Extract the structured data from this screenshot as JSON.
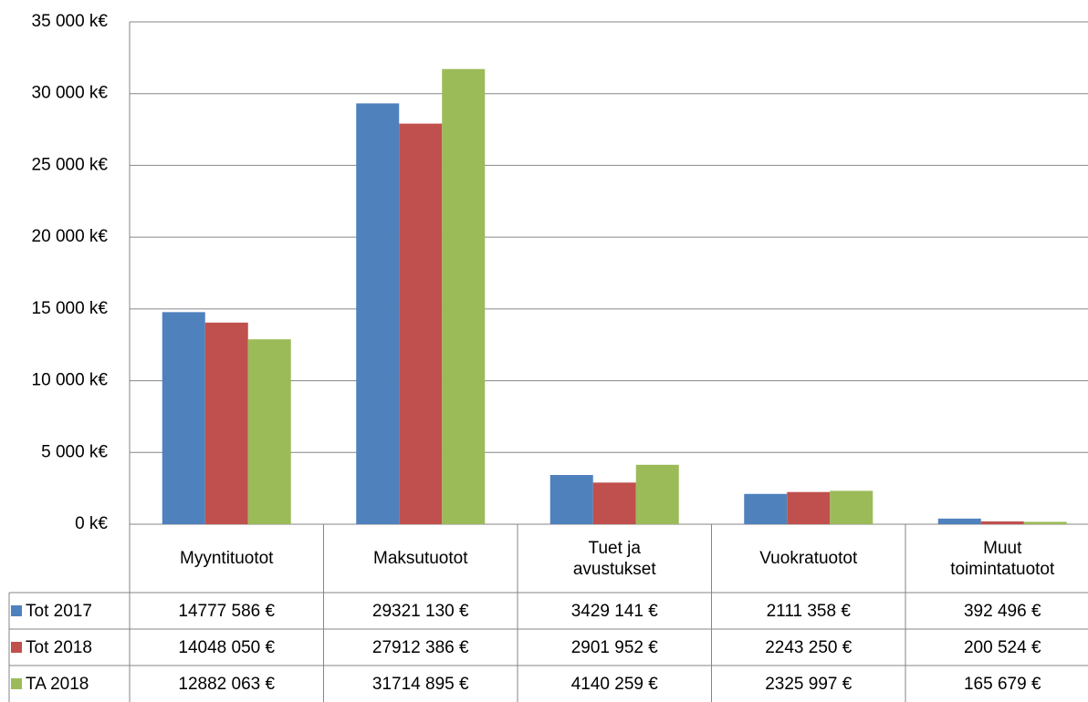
{
  "chart_data": {
    "type": "bar",
    "categories": [
      "Myyntituotot",
      "Maksutuotot",
      "Tuet ja avustukset",
      "Vuokratuotot",
      "Muut toimintatuotot"
    ],
    "series": [
      {
        "name": "Tot 2017",
        "color": "#4f81bd",
        "values": [
          14777.586,
          29321.13,
          3429.141,
          2111.358,
          392.496
        ],
        "value_labels": [
          "14777 586 €",
          "29321 130 €",
          "3429 141 €",
          "2111 358 €",
          "392 496 €"
        ]
      },
      {
        "name": "Tot 2018",
        "color": "#c0504d",
        "values": [
          14048.05,
          27912.386,
          2901.952,
          2243.25,
          200.524
        ],
        "value_labels": [
          "14048 050 €",
          "27912 386 €",
          "2901 952 €",
          "2243 250 €",
          "200 524 €"
        ]
      },
      {
        "name": "TA 2018",
        "color": "#9bbb59",
        "values": [
          12882.063,
          31714.895,
          4140.259,
          2325.997,
          165.679
        ],
        "value_labels": [
          "12882 063 €",
          "31714 895 €",
          "4140 259 €",
          "2325 997 €",
          "165 679 €"
        ]
      }
    ],
    "ylim": [
      0,
      35000
    ],
    "yticks": [
      {
        "value": 0,
        "label": "0 k€"
      },
      {
        "value": 5000,
        "label": "5 000 k€"
      },
      {
        "value": 10000,
        "label": "10 000 k€"
      },
      {
        "value": 15000,
        "label": "15 000 k€"
      },
      {
        "value": 20000,
        "label": "20 000 k€"
      },
      {
        "value": 25000,
        "label": "25 000 k€"
      },
      {
        "value": 30000,
        "label": "30 000 k€"
      },
      {
        "value": 35000,
        "label": "35 000 k€"
      }
    ],
    "grid": true
  }
}
